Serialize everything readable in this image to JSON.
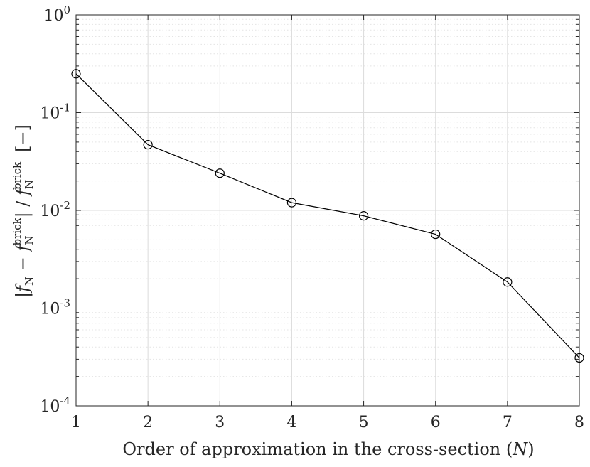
{
  "chart_data": {
    "type": "line",
    "xlabel_parts": {
      "text": "Order of approximation in the cross-section (",
      "var": "N",
      "close": ")"
    },
    "ylabel_parts": {
      "bar": "|",
      "f": "f",
      "sub": "N",
      "minus": " − ",
      "sup": "brick",
      "slash": " / ",
      "unit": "[−]"
    },
    "x": [
      1,
      2,
      3,
      4,
      5,
      6,
      7,
      8
    ],
    "y": [
      0.25,
      0.047,
      0.024,
      0.012,
      0.0088,
      0.0057,
      0.00185,
      0.00031
    ],
    "xlim": [
      1,
      8
    ],
    "ylim": [
      0.0001,
      1
    ],
    "yscale": "log",
    "xticks": [
      "1",
      "2",
      "3",
      "4",
      "5",
      "6",
      "7",
      "8"
    ],
    "yticks": [
      {
        "base": "10",
        "exp": "0"
      },
      {
        "base": "10",
        "exp": "-1"
      },
      {
        "base": "10",
        "exp": "-2"
      },
      {
        "base": "10",
        "exp": "-3"
      },
      {
        "base": "10",
        "exp": "-4"
      }
    ],
    "grid": true,
    "minor_grid": true,
    "marker": "open-circle",
    "line_color": "#000000",
    "grid_color": "#dcdcdc"
  }
}
